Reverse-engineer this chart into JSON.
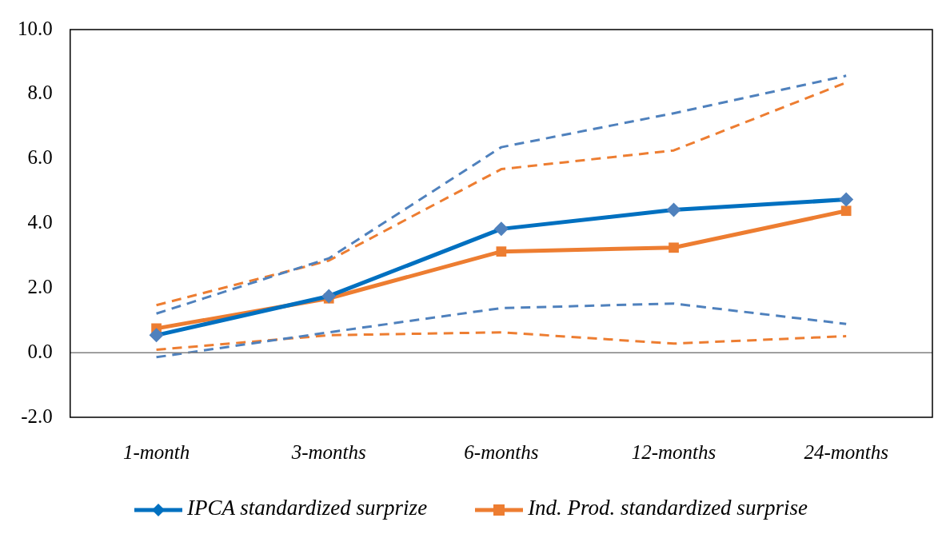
{
  "chart_data": {
    "type": "line",
    "categories": [
      "1-month",
      "3-months",
      "6-months",
      "12-months",
      "24-months"
    ],
    "series": [
      {
        "color": "#4f81bd",
        "values": [
          1.21,
          2.92,
          6.36,
          7.41,
          8.57
        ],
        "line_style": "dashed",
        "marker": "none"
      },
      {
        "color": "#4f81bd",
        "values": [
          -0.14,
          0.63,
          1.38,
          1.52,
          0.89
        ],
        "line_style": "dashed",
        "marker": "none"
      },
      {
        "color": "#ed7d31",
        "values": [
          1.47,
          2.85,
          5.68,
          6.26,
          8.36
        ],
        "line_style": "dashed",
        "marker": "none"
      },
      {
        "color": "#ed7d31",
        "values": [
          0.09,
          0.54,
          0.63,
          0.28,
          0.51
        ],
        "line_style": "dashed",
        "marker": "none"
      },
      {
        "name": "IPCA standardized surprize",
        "color": "#0070c0",
        "values": [
          0.54,
          1.75,
          3.83,
          4.42,
          4.74
        ],
        "line_style": "solid",
        "marker": "diamond"
      },
      {
        "name": "Ind. Prod. standardized surprise",
        "color": "#ed7d31",
        "values": [
          0.75,
          1.68,
          3.13,
          3.25,
          4.39
        ],
        "line_style": "solid",
        "marker": "square"
      }
    ],
    "ylim": [
      -2,
      10
    ],
    "yticks": [
      {
        "value": -2,
        "label": "-2.0"
      },
      {
        "value": 0,
        "label": "0.0"
      },
      {
        "value": 2,
        "label": "2.0"
      },
      {
        "value": 4,
        "label": "4.0"
      },
      {
        "value": 6,
        "label": "6.0"
      },
      {
        "value": 8,
        "label": "8.0"
      },
      {
        "value": 10,
        "label": "10.0"
      }
    ],
    "ref_lines": [
      {
        "axis": "y",
        "value": 0,
        "color": "#808080"
      }
    ],
    "grid": false,
    "legend": "bottom"
  }
}
